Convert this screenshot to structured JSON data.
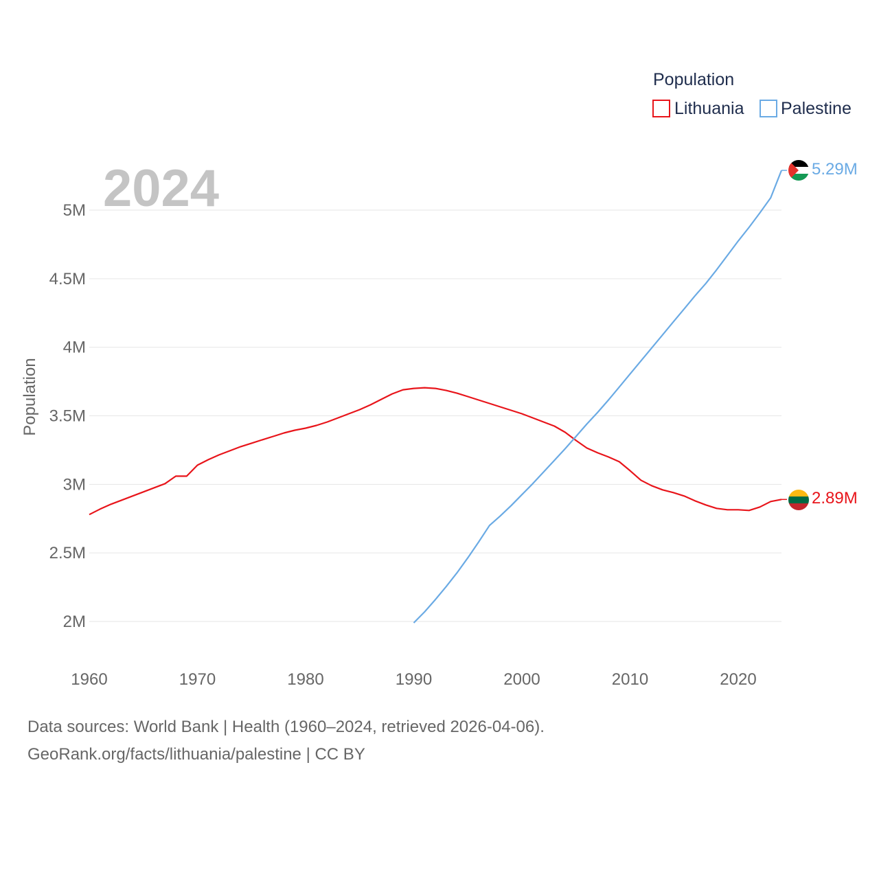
{
  "chart_data": {
    "type": "line",
    "ylabel": "Population",
    "year_label": "2024",
    "legend_title": "Population",
    "xlim": [
      1960,
      2024
    ],
    "ylim": [
      1.8,
      5.35
    ],
    "x_ticks": [
      1960,
      1970,
      1980,
      1990,
      2000,
      2010,
      2020
    ],
    "y_ticks": [
      {
        "value": 2.0,
        "label": "2M"
      },
      {
        "value": 2.5,
        "label": "2.5M"
      },
      {
        "value": 3.0,
        "label": "3M"
      },
      {
        "value": 3.5,
        "label": "3.5M"
      },
      {
        "value": 4.0,
        "label": "4M"
      },
      {
        "value": 4.5,
        "label": "4.5M"
      },
      {
        "value": 5.0,
        "label": "5M"
      }
    ],
    "series": [
      {
        "name": "Lithuania",
        "color": "#e8141a",
        "end_label": "2.89M",
        "flag": "lithuania-flag",
        "x": [
          1960,
          1961,
          1962,
          1963,
          1964,
          1965,
          1966,
          1967,
          1968,
          1969,
          1970,
          1971,
          1972,
          1973,
          1974,
          1975,
          1976,
          1977,
          1978,
          1979,
          1980,
          1981,
          1982,
          1983,
          1984,
          1985,
          1986,
          1987,
          1988,
          1989,
          1990,
          1991,
          1992,
          1993,
          1994,
          1995,
          1996,
          1997,
          1998,
          1999,
          2000,
          2001,
          2002,
          2003,
          2004,
          2005,
          2006,
          2007,
          2008,
          2009,
          2010,
          2011,
          2012,
          2013,
          2014,
          2015,
          2016,
          2017,
          2018,
          2019,
          2020,
          2021,
          2022,
          2023,
          2024
        ],
        "values": [
          2.78,
          2.82,
          2.855,
          2.885,
          2.915,
          2.945,
          2.975,
          3.005,
          3.06,
          3.06,
          3.14,
          3.18,
          3.215,
          3.245,
          3.275,
          3.3,
          3.325,
          3.35,
          3.375,
          3.395,
          3.41,
          3.43,
          3.455,
          3.485,
          3.515,
          3.545,
          3.58,
          3.62,
          3.66,
          3.69,
          3.7,
          3.705,
          3.7,
          3.685,
          3.665,
          3.64,
          3.615,
          3.59,
          3.565,
          3.54,
          3.515,
          3.485,
          3.455,
          3.425,
          3.38,
          3.32,
          3.265,
          3.23,
          3.2,
          3.165,
          3.1,
          3.03,
          2.99,
          2.96,
          2.94,
          2.915,
          2.88,
          2.85,
          2.825,
          2.815,
          2.815,
          2.81,
          2.835,
          2.875,
          2.89
        ]
      },
      {
        "name": "Palestine",
        "color": "#6aaae4",
        "end_label": "5.29M",
        "flag": "palestine-flag",
        "x": [
          1990,
          1991,
          1992,
          1993,
          1994,
          1995,
          1996,
          1997,
          1998,
          1999,
          2000,
          2001,
          2002,
          2003,
          2004,
          2005,
          2006,
          2007,
          2008,
          2009,
          2010,
          2011,
          2012,
          2013,
          2014,
          2015,
          2016,
          2017,
          2018,
          2019,
          2020,
          2021,
          2022,
          2023,
          2024
        ],
        "values": [
          1.99,
          2.07,
          2.16,
          2.255,
          2.355,
          2.465,
          2.58,
          2.7,
          2.77,
          2.845,
          2.925,
          3.005,
          3.09,
          3.175,
          3.26,
          3.35,
          3.44,
          3.525,
          3.615,
          3.71,
          3.805,
          3.9,
          3.995,
          4.09,
          4.185,
          4.28,
          4.375,
          4.465,
          4.565,
          4.67,
          4.775,
          4.875,
          4.98,
          5.09,
          5.29
        ]
      }
    ]
  },
  "footer": {
    "line1": "Data sources: World Bank | Health (1960–2024, retrieved 2026-04-06).",
    "line2": "GeoRank.org/facts/lithuania/palestine | CC BY"
  }
}
